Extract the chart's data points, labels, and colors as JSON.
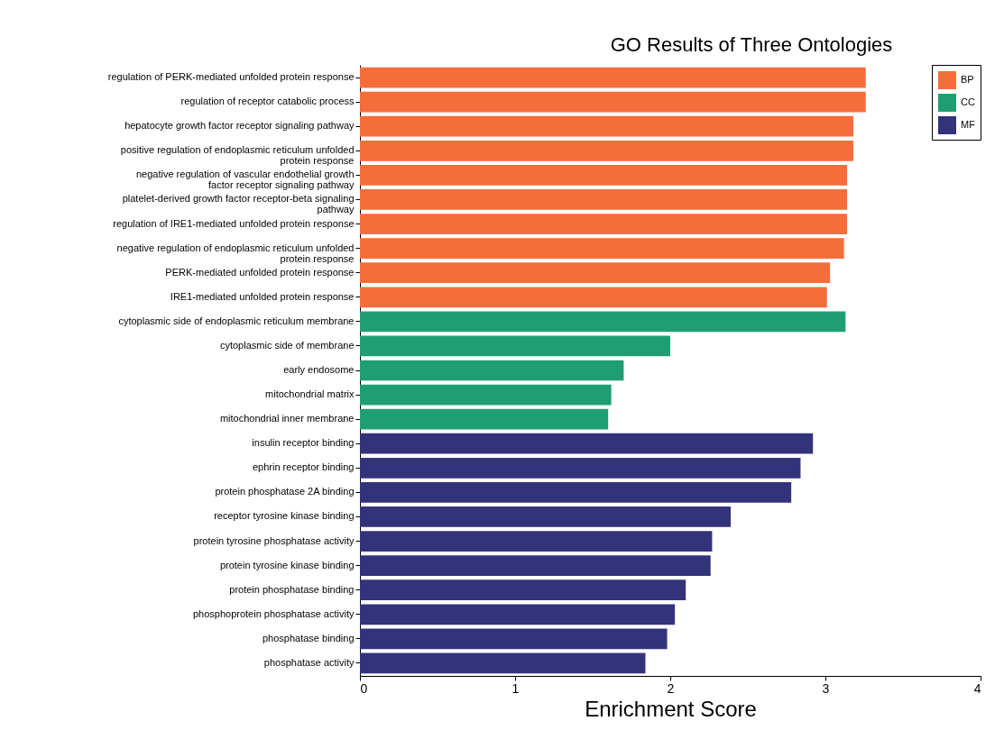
{
  "chart_data": {
    "type": "bar",
    "orientation": "horizontal",
    "title": "GO Results of Three Ontologies",
    "xlabel": "Enrichment Score",
    "categories": [
      "regulation of PERK-mediated unfolded protein response",
      "regulation of receptor catabolic process",
      "hepatocyte growth factor receptor signaling pathway",
      "positive regulation of endoplasmic reticulum unfolded protein response",
      "negative regulation of vascular endothelial growth factor receptor signaling pathway",
      "platelet-derived growth factor receptor-beta signaling pathway",
      "regulation of IRE1-mediated unfolded protein response",
      "negative regulation of endoplasmic reticulum unfolded protein response",
      "PERK-mediated unfolded protein response",
      "IRE1-mediated unfolded protein response",
      "cytoplasmic side of endoplasmic reticulum membrane",
      "cytoplasmic side of membrane",
      "early endosome",
      "mitochondrial matrix",
      "mitochondrial inner membrane",
      "insulin receptor binding",
      "ephrin receptor binding",
      "protein phosphatase 2A binding",
      "receptor tyrosine kinase binding",
      "protein tyrosine phosphatase activity",
      "protein tyrosine kinase binding",
      "protein phosphatase binding",
      "phosphoprotein phosphatase activity",
      "phosphatase binding",
      "phosphatase activity"
    ],
    "series": [
      {
        "name": "BP",
        "color": "#f46d3b",
        "values": [
          3.26,
          3.26,
          3.18,
          3.18,
          3.14,
          3.14,
          3.14,
          3.12,
          3.03,
          3.01,
          null,
          null,
          null,
          null,
          null,
          null,
          null,
          null,
          null,
          null,
          null,
          null,
          null,
          null,
          null
        ]
      },
      {
        "name": "CC",
        "color": "#1f9e74",
        "values": [
          null,
          null,
          null,
          null,
          null,
          null,
          null,
          null,
          null,
          null,
          3.13,
          2.0,
          1.7,
          1.62,
          1.6,
          null,
          null,
          null,
          null,
          null,
          null,
          null,
          null,
          null,
          null
        ]
      },
      {
        "name": "MF",
        "color": "#33337a",
        "values": [
          null,
          null,
          null,
          null,
          null,
          null,
          null,
          null,
          null,
          null,
          null,
          null,
          null,
          null,
          null,
          2.92,
          2.84,
          2.78,
          2.39,
          2.27,
          2.26,
          2.1,
          2.03,
          1.98,
          1.84
        ]
      }
    ],
    "xlim": [
      0,
      4
    ],
    "xticks": [
      0,
      1,
      2,
      3,
      4
    ],
    "grid": false,
    "legend": "top right"
  }
}
